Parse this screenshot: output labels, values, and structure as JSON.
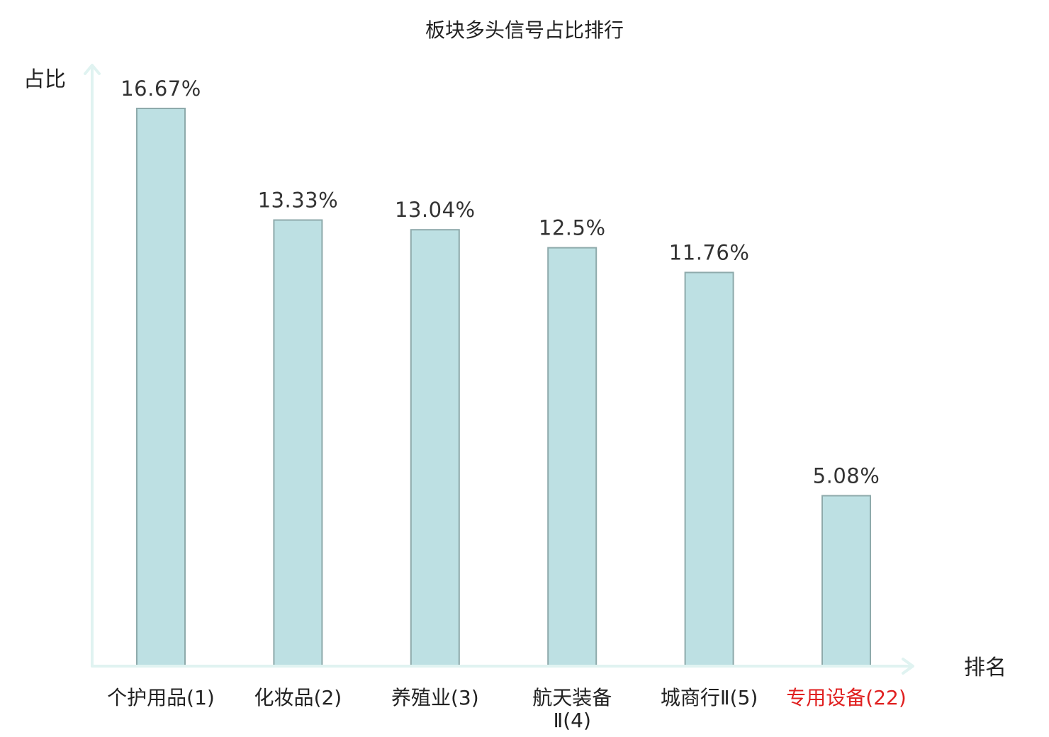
{
  "chart_data": {
    "type": "bar",
    "title": "板块多头信号占比排行",
    "ylabel": "占比",
    "xlabel": "排名",
    "categories": [
      {
        "name": "个护用品",
        "rank": "(1)",
        "highlight": false
      },
      {
        "name": "化妆品",
        "rank": "(2)",
        "highlight": false
      },
      {
        "name": "养殖业",
        "rank": "(3)",
        "highlight": false
      },
      {
        "name": "航天装备",
        "rank": "Ⅱ(4)",
        "highlight": false,
        "wrap": true
      },
      {
        "name": "城商行",
        "rank": "Ⅱ(5)",
        "highlight": false
      },
      {
        "name": "专用设备",
        "rank": "(22)",
        "highlight": true
      }
    ],
    "values": [
      16.67,
      13.33,
      13.04,
      12.5,
      11.76,
      5.08
    ],
    "value_labels": [
      "16.67%",
      "13.33%",
      "13.04%",
      "12.5%",
      "11.76%",
      "5.08%"
    ],
    "grid": false,
    "legend": "none",
    "colors": {
      "bar_fill": "#bde0e3",
      "bar_stroke": "#8eaaab",
      "axis": "#e0f3f1",
      "highlight_label": "#e02020"
    }
  }
}
